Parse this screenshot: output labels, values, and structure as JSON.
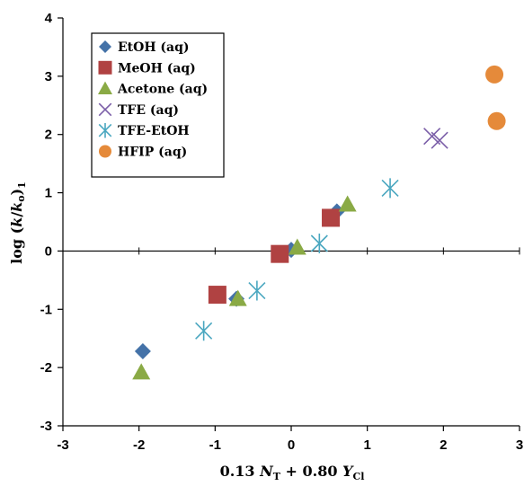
{
  "chart_data": {
    "type": "scatter",
    "xlabel": {
      "prefix": "0.13 ",
      "v1": "N",
      "s1": "T",
      "mid": " + 0.80 ",
      "v2": "Y",
      "s2": "Cl"
    },
    "ylabel": {
      "pre": "log (",
      "k": "k",
      "slash": "/",
      "k0": "k",
      "s0": "o",
      "post": ")",
      "s1": "1"
    },
    "xlim": [
      -3,
      3
    ],
    "ylim": [
      -3,
      4
    ],
    "xticks": [
      "-3",
      "-2",
      "-1",
      "0",
      "1",
      "2",
      "3"
    ],
    "yticks": [
      "-3",
      "-2",
      "-1",
      "0",
      "1",
      "2",
      "3",
      "4"
    ],
    "grid": false,
    "legend_position": "top-left",
    "series": [
      {
        "name": "EtOH (aq)",
        "marker": "diamond",
        "color": "#4472a8",
        "points": [
          [
            -1.95,
            -1.72
          ],
          [
            -0.72,
            -0.82
          ],
          [
            0.0,
            0.02
          ],
          [
            0.6,
            0.68
          ]
        ]
      },
      {
        "name": "MeOH (aq)",
        "marker": "square",
        "color": "#b04242",
        "points": [
          [
            -0.97,
            -0.75
          ],
          [
            -0.15,
            -0.05
          ],
          [
            0.52,
            0.57
          ]
        ]
      },
      {
        "name": "Acetone (aq)",
        "marker": "triangle",
        "color": "#8aaa45",
        "points": [
          [
            -1.97,
            -2.08
          ],
          [
            -0.7,
            -0.82
          ],
          [
            0.08,
            0.06
          ],
          [
            0.74,
            0.8
          ]
        ]
      },
      {
        "name": "TFE (aq)",
        "marker": "x",
        "color": "#7b5ea8",
        "points": [
          [
            1.85,
            1.97
          ],
          [
            1.95,
            1.9
          ]
        ]
      },
      {
        "name": "TFE-EtOH",
        "marker": "asterisk",
        "color": "#4aa7c0",
        "points": [
          [
            -1.15,
            -1.37
          ],
          [
            -0.45,
            -0.68
          ],
          [
            0.37,
            0.13
          ],
          [
            1.3,
            1.08
          ]
        ]
      },
      {
        "name": "HFIP (aq)",
        "marker": "circle",
        "color": "#e58a3a",
        "points": [
          [
            2.67,
            3.03
          ],
          [
            2.7,
            2.23
          ]
        ]
      }
    ]
  }
}
